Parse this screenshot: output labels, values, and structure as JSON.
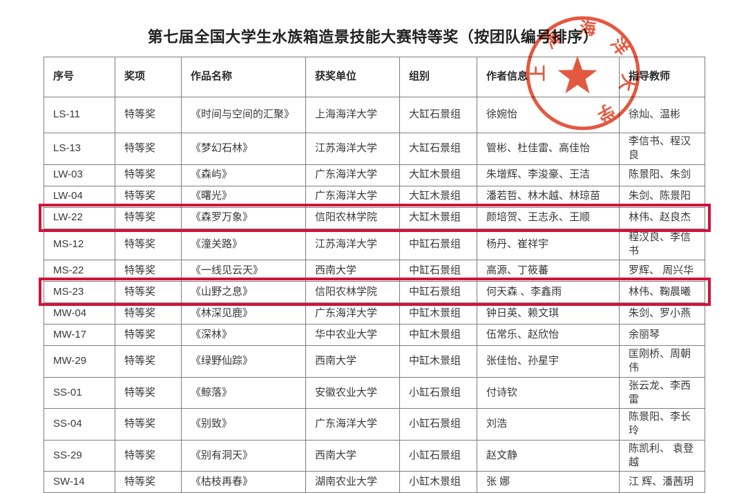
{
  "page": {
    "title": "第七届全国大学生水族箱造景技能大赛特等奖（按团队编号排序）"
  },
  "table": {
    "headers": [
      "序号",
      "奖项",
      "作品名称",
      "获奖单位",
      "组别",
      "作者信息",
      "指导教师"
    ],
    "rows": [
      {
        "id": "LS-11",
        "award": "特等奖",
        "work": "《时间与空间的汇聚》",
        "unit": "上海海洋大学",
        "group": "大缸石景组",
        "authors": "徐婉怡",
        "advisors": "徐灿、温彬",
        "highlighted": false
      },
      {
        "id": "LS-13",
        "award": "特等奖",
        "work": "《梦幻石林》",
        "unit": "江苏海洋大学",
        "group": "大缸石景组",
        "authors": "管彬、杜佳雷、高佳怡",
        "advisors": "李信书、程汉良",
        "highlighted": false
      },
      {
        "id": "LW-03",
        "award": "特等奖",
        "work": "《森屿》",
        "unit": "广东海洋大学",
        "group": "大缸木景组",
        "authors": "朱增辉、李浚豪、王洁",
        "advisors": "陈景阳、朱剑",
        "highlighted": false
      },
      {
        "id": "LW-04",
        "award": "特等奖",
        "work": "《曙光》",
        "unit": "广东海洋大学",
        "group": "大缸木景组",
        "authors": "潘若哲、林木越、林琼苗",
        "advisors": "朱剑、陈景阳",
        "highlighted": false
      },
      {
        "id": "LW-22",
        "award": "特等奖",
        "work": "《森罗万象》",
        "unit": "信阳农林学院",
        "group": "大缸木景组",
        "authors": "颜培贺、王志永、王顺",
        "advisors": "林伟、赵良杰",
        "highlighted": true
      },
      {
        "id": "MS-12",
        "award": "特等奖",
        "work": "《潼关路》",
        "unit": "江苏海洋大学",
        "group": "中缸石景组",
        "authors": "杨丹、崔祥宇",
        "advisors": "程汉良、李信书",
        "highlighted": false
      },
      {
        "id": "MS-22",
        "award": "特等奖",
        "work": "《一线见云天》",
        "unit": "西南大学",
        "group": "中缸石景组",
        "authors": "高源、丁筱蕃",
        "advisors": "罗辉、 周兴华",
        "highlighted": false
      },
      {
        "id": "MS-23",
        "award": "特等奖",
        "work": "《山野之息》",
        "unit": "信阳农林学院",
        "group": "中缸石景组",
        "authors": "何天森 、李鑫雨",
        "advisors": "林伟、鞠晨曦",
        "highlighted": true
      },
      {
        "id": "MW-04",
        "award": "特等奖",
        "work": "《林深见鹿》",
        "unit": "广东海洋大学",
        "group": "中缸木景组",
        "authors": "钟日英、赖文琪",
        "advisors": "朱剑、罗小燕",
        "highlighted": false
      },
      {
        "id": "MW-17",
        "award": "特等奖",
        "work": "《深林》",
        "unit": "华中农业大学",
        "group": "中缸木景组",
        "authors": "伍常乐、赵欣怡",
        "advisors": "余丽琴",
        "highlighted": false
      },
      {
        "id": "MW-29",
        "award": "特等奖",
        "work": "《绿野仙踪》",
        "unit": "西南大学",
        "group": "中缸木景组",
        "authors": "张佳怡、孙星宇",
        "advisors": "匡刚桥、周朝伟",
        "highlighted": false
      },
      {
        "id": "SS-01",
        "award": "特等奖",
        "work": "《鲸落》",
        "unit": "安徽农业大学",
        "group": "小缸石景组",
        "authors": "付诗钦",
        "advisors": "张云龙、李西雷",
        "highlighted": false
      },
      {
        "id": "SS-04",
        "award": "特等奖",
        "work": "《别致》",
        "unit": "广东海洋大学",
        "group": "小缸石景组",
        "authors": "刘浩",
        "advisors": "陈景阳、李长玲",
        "highlighted": false
      },
      {
        "id": "SS-29",
        "award": "特等奖",
        "work": "《别有洞天》",
        "unit": "西南大学",
        "group": "小缸石景组",
        "authors": "赵文静",
        "advisors": "陈凯利、 袁登越",
        "highlighted": false
      },
      {
        "id": "SW-14",
        "award": "特等奖",
        "work": "《枯枝再春》",
        "unit": "湖南农业大学",
        "group": "小缸木景组",
        "authors": "张 娜",
        "advisors": "江 辉、潘茜玥",
        "highlighted": false
      }
    ]
  },
  "stamp": {
    "name": "上海海洋大学",
    "chars": [
      "上",
      "海",
      "海",
      "洋",
      "大",
      "学"
    ],
    "color": "#e2492f"
  },
  "highlight_color": "#d2123a"
}
